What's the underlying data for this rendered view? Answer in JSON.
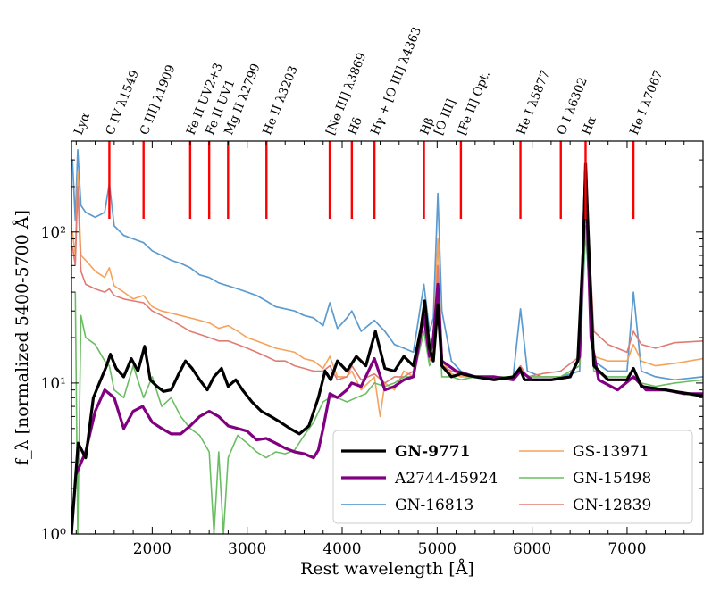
{
  "chart_data": {
    "type": "line",
    "xlabel": "Rest wavelength [Å]",
    "ylabel": "f_λ [normalized 5400-5700 Å]",
    "yscale": "log",
    "xlim": [
      1150,
      7800
    ],
    "ylim": [
      1,
      400
    ],
    "x_ticks": [
      {
        "value": 2000,
        "label": "2000"
      },
      {
        "value": 3000,
        "label": "3000"
      },
      {
        "value": 4000,
        "label": "4000"
      },
      {
        "value": 5000,
        "label": "5000"
      },
      {
        "value": 6000,
        "label": "6000"
      },
      {
        "value": 7000,
        "label": "7000"
      }
    ],
    "y_ticks": [
      {
        "value": 1,
        "label": "10⁰"
      },
      {
        "value": 10,
        "label": "10¹"
      },
      {
        "value": 100,
        "label": "10²"
      }
    ],
    "emission_lines": [
      {
        "wave": 1216,
        "label": "Lyα",
        "marker": false
      },
      {
        "wave": 1549,
        "label": "C IV λ1549",
        "marker": true
      },
      {
        "wave": 1909,
        "label": "C III] λ1909",
        "marker": true
      },
      {
        "wave": 2400,
        "label": "Fe II UV2+3",
        "marker": true
      },
      {
        "wave": 2600,
        "label": "Fe II UV1",
        "marker": true
      },
      {
        "wave": 2799,
        "label": "Mg II λ2799",
        "marker": true
      },
      {
        "wave": 3203,
        "label": "He II λ3203",
        "marker": true
      },
      {
        "wave": 3869,
        "label": "[Ne III] λ3869",
        "marker": true
      },
      {
        "wave": 4102,
        "label": "Hδ",
        "marker": true
      },
      {
        "wave": 4340,
        "label": "Hγ + [O III] λ4363",
        "marker": true
      },
      {
        "wave": 4861,
        "label": "Hβ",
        "marker": true
      },
      {
        "wave": 5007,
        "label": "[O III]",
        "marker": false
      },
      {
        "wave": 5250,
        "label": "[Fe II] Opt.",
        "marker": true
      },
      {
        "wave": 5877,
        "label": "He I λ5877",
        "marker": true
      },
      {
        "wave": 6302,
        "label": "O I λ6302",
        "marker": true
      },
      {
        "wave": 6563,
        "label": "Hα",
        "marker": true
      },
      {
        "wave": 7067,
        "label": "He I λ7067",
        "marker": true
      }
    ],
    "series": [
      {
        "name": "GN-9771",
        "color": "#000000",
        "width": 3.2,
        "bold": true,
        "x": [
          1150,
          1220,
          1300,
          1380,
          1450,
          1520,
          1560,
          1620,
          1700,
          1780,
          1850,
          1920,
          1980,
          2050,
          2120,
          2200,
          2280,
          2350,
          2420,
          2500,
          2580,
          2650,
          2730,
          2800,
          2880,
          2950,
          3050,
          3150,
          3250,
          3350,
          3450,
          3550,
          3650,
          3750,
          3820,
          3880,
          3950,
          4050,
          4150,
          4250,
          4350,
          4450,
          4550,
          4650,
          4750,
          4830,
          4870,
          4920,
          4960,
          5007,
          5050,
          5150,
          5250,
          5400,
          5600,
          5800,
          5870,
          5920,
          6000,
          6200,
          6400,
          6480,
          6540,
          6563,
          6590,
          6650,
          6800,
          7000,
          7067,
          7150,
          7400,
          7600,
          7800
        ],
        "y": [
          1.0,
          4.0,
          3.2,
          8.0,
          10.2,
          13.0,
          15.5,
          12.5,
          11.0,
          14.5,
          12.0,
          17.5,
          10.5,
          9.5,
          8.8,
          9.0,
          11.5,
          14.0,
          12.5,
          10.5,
          9.0,
          11.0,
          12.5,
          9.5,
          10.5,
          9.0,
          7.5,
          6.5,
          6.0,
          5.5,
          5.0,
          4.6,
          5.2,
          8.0,
          12.0,
          10.5,
          14.0,
          12.0,
          15.0,
          13.0,
          22.0,
          12.5,
          12.0,
          15.0,
          13.0,
          23.0,
          35.0,
          17.0,
          14.0,
          33.0,
          13.0,
          11.0,
          11.5,
          11.0,
          10.5,
          11.0,
          12.5,
          10.5,
          10.5,
          10.5,
          11.0,
          14.0,
          80.0,
          285.0,
          100.0,
          13.0,
          10.5,
          10.5,
          12.5,
          9.5,
          9.0,
          8.6,
          8.2
        ]
      },
      {
        "name": "A2744-45924",
        "color": "#800080",
        "width": 3.2,
        "bold": false,
        "x": [
          1200,
          1300,
          1400,
          1500,
          1600,
          1700,
          1800,
          1900,
          2000,
          2100,
          2200,
          2300,
          2400,
          2500,
          2600,
          2700,
          2800,
          2900,
          3000,
          3100,
          3200,
          3300,
          3400,
          3500,
          3600,
          3700,
          3750,
          3800,
          3870,
          3950,
          4050,
          4100,
          4200,
          4340,
          4450,
          4550,
          4650,
          4750,
          4861,
          4920,
          4960,
          5007,
          5050,
          5200,
          5400,
          5600,
          5800,
          5877,
          6000,
          6200,
          6400,
          6500,
          6563,
          6620,
          6700,
          6900,
          7067,
          7200,
          7400,
          7600,
          7800
        ],
        "y": [
          2.5,
          3.5,
          6.5,
          9.0,
          8.0,
          5.0,
          6.5,
          7.0,
          5.5,
          5.0,
          4.6,
          4.6,
          5.2,
          6.0,
          6.5,
          6.0,
          5.2,
          5.0,
          4.8,
          4.2,
          4.3,
          4.0,
          3.7,
          3.5,
          3.4,
          3.2,
          3.6,
          5.0,
          8.5,
          8.0,
          9.0,
          10.0,
          9.5,
          14.5,
          9.0,
          9.5,
          10.5,
          11.0,
          28.0,
          15.0,
          20.0,
          45.0,
          14.0,
          12.0,
          11.0,
          11.0,
          10.5,
          12.0,
          10.5,
          10.5,
          11.0,
          15.0,
          255.0,
          20.0,
          10.5,
          9.0,
          11.0,
          9.0,
          9.0,
          8.5,
          8.5
        ]
      },
      {
        "name": "GN-16813",
        "color": "#5b9bd0",
        "width": 1.7,
        "bold": false,
        "x": [
          1160,
          1190,
          1216,
          1250,
          1300,
          1400,
          1500,
          1549,
          1600,
          1700,
          1800,
          1909,
          2000,
          2100,
          2200,
          2300,
          2400,
          2500,
          2600,
          2700,
          2800,
          2900,
          3000,
          3100,
          3200,
          3300,
          3400,
          3500,
          3600,
          3700,
          3800,
          3870,
          3950,
          4050,
          4102,
          4200,
          4340,
          4450,
          4550,
          4650,
          4750,
          4861,
          4920,
          4960,
          5007,
          5050,
          5150,
          5250,
          5400,
          5600,
          5800,
          5877,
          5950,
          6100,
          6300,
          6500,
          6563,
          6650,
          6800,
          7000,
          7067,
          7150,
          7300,
          7500,
          7800
        ],
        "y": [
          300,
          120,
          350,
          150,
          135,
          125,
          135,
          210,
          110,
          95,
          90,
          85,
          75,
          70,
          65,
          62,
          58,
          52,
          50,
          46,
          44,
          42,
          40,
          38,
          35,
          32,
          31,
          30,
          28,
          27,
          24,
          34,
          23,
          27,
          30,
          22,
          26,
          22,
          18,
          17,
          16,
          45,
          22,
          27,
          180,
          30,
          14,
          12,
          11,
          11,
          11,
          31,
          12,
          11,
          11,
          12,
          105,
          14,
          12,
          12,
          40,
          12,
          11,
          10.5,
          11
        ]
      },
      {
        "name": "GS-13971",
        "color": "#f5a35b",
        "width": 1.6,
        "bold": false,
        "x": [
          1160,
          1190,
          1216,
          1250,
          1300,
          1400,
          1500,
          1549,
          1600,
          1700,
          1800,
          1909,
          2000,
          2100,
          2200,
          2300,
          2400,
          2500,
          2600,
          2700,
          2800,
          2900,
          3000,
          3100,
          3200,
          3300,
          3400,
          3500,
          3600,
          3700,
          3800,
          3870,
          3950,
          4050,
          4102,
          4200,
          4340,
          4400,
          4450,
          4550,
          4650,
          4750,
          4861,
          4920,
          4960,
          5007,
          5050,
          5150,
          5250,
          5400,
          5600,
          5800,
          5877,
          5950,
          6100,
          6300,
          6500,
          6563,
          6650,
          6800,
          7000,
          7067,
          7150,
          7300,
          7500,
          7800
        ],
        "y": [
          100,
          70,
          250,
          70,
          65,
          55,
          50,
          58,
          44,
          40,
          36,
          38,
          32,
          30,
          29,
          28,
          27,
          26,
          25,
          23,
          24,
          22,
          20,
          19,
          18,
          17,
          16.5,
          16,
          14.5,
          14,
          12.5,
          15,
          11,
          11,
          12,
          9,
          11,
          6,
          10,
          9,
          12,
          11,
          30,
          15,
          18,
          90,
          14,
          11.5,
          11,
          11,
          11,
          11,
          12.5,
          11,
          11,
          11,
          13,
          190,
          15,
          14,
          14,
          18,
          14,
          13,
          13.5,
          14.5
        ]
      },
      {
        "name": "GN-15498",
        "color": "#6abd62",
        "width": 1.6,
        "bold": false,
        "x": [
          1190,
          1216,
          1250,
          1300,
          1400,
          1500,
          1549,
          1600,
          1700,
          1800,
          1909,
          2000,
          2100,
          2200,
          2300,
          2400,
          2500,
          2600,
          2650,
          2700,
          2750,
          2800,
          2900,
          3000,
          3100,
          3200,
          3300,
          3400,
          3500,
          3600,
          3700,
          3800,
          3870,
          3950,
          4050,
          4150,
          4250,
          4340,
          4450,
          4550,
          4650,
          4750,
          4861,
          4920,
          4960,
          5007,
          5050,
          5150,
          5250,
          5400,
          5600,
          5800,
          5877,
          5950,
          6100,
          6300,
          6500,
          6563,
          6650,
          6800,
          7000,
          7067,
          7150,
          7300,
          7500,
          7800
        ],
        "y": [
          40,
          1.0,
          28,
          20,
          18,
          14,
          13,
          9,
          8,
          13,
          8,
          11,
          7,
          8,
          6,
          5,
          4.5,
          3.5,
          1.0,
          3.5,
          1.0,
          3.2,
          4.5,
          4,
          3.5,
          3.2,
          3.5,
          3.4,
          3.6,
          4.5,
          5.5,
          7.5,
          8,
          8,
          7.5,
          8,
          8.5,
          10,
          9.5,
          10,
          11,
          11,
          22,
          13,
          15,
          40,
          11,
          11,
          10.5,
          11,
          11,
          11,
          12,
          11,
          11,
          11,
          13,
          110,
          12,
          11,
          11,
          12,
          10,
          9.5,
          10,
          10.5
        ]
      },
      {
        "name": "GN-12839",
        "color": "#e07b74",
        "width": 1.6,
        "bold": false,
        "x": [
          1160,
          1190,
          1216,
          1250,
          1300,
          1400,
          1500,
          1549,
          1600,
          1700,
          1800,
          1909,
          2000,
          2100,
          2200,
          2300,
          2400,
          2500,
          2600,
          2700,
          2800,
          2900,
          3000,
          3100,
          3200,
          3300,
          3400,
          3500,
          3600,
          3700,
          3800,
          3870,
          3950,
          4050,
          4102,
          4200,
          4340,
          4450,
          4550,
          4650,
          4750,
          4861,
          4920,
          4960,
          5007,
          5050,
          5150,
          5250,
          5400,
          5600,
          5800,
          5877,
          5950,
          6100,
          6300,
          6500,
          6563,
          6650,
          6800,
          7000,
          7067,
          7150,
          7300,
          7500,
          7800
        ],
        "y": [
          80,
          60,
          200,
          55,
          45,
          42,
          40,
          42,
          38,
          36,
          35,
          34,
          30,
          28,
          26,
          24,
          22,
          21,
          20,
          19,
          19,
          18,
          17,
          16,
          15,
          14,
          14,
          13,
          12.5,
          12,
          12,
          13,
          10.5,
          11,
          13,
          10.5,
          11.5,
          10,
          11,
          11,
          12,
          25,
          14,
          16,
          60,
          13,
          12,
          11.5,
          11,
          11,
          11,
          13,
          11,
          11.5,
          12,
          15,
          230,
          22,
          18,
          16,
          22,
          18,
          17,
          18.5,
          19
        ]
      }
    ],
    "legend": {
      "position": "bottom-right",
      "columns": [
        [
          "GN-9771",
          "A2744-45924",
          "GN-16813"
        ],
        [
          "GS-13971",
          "GN-15498",
          "GN-12839"
        ]
      ]
    }
  }
}
